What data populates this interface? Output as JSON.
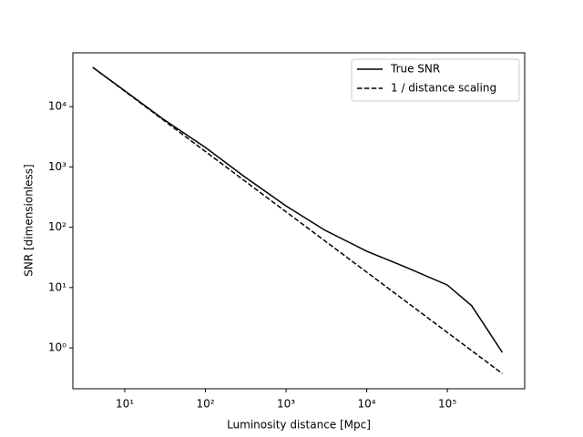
{
  "chart_data": {
    "type": "line",
    "xlabel": "Luminosity distance [Mpc]",
    "ylabel": "SNR [dimensionless]",
    "x": [
      4.0,
      10,
      30,
      100,
      300,
      1000,
      3000,
      10000,
      30000,
      100000,
      200000,
      300000,
      480000
    ],
    "series": [
      {
        "name": "True SNR",
        "color": "#000000",
        "linestyle": "solid",
        "values": [
          44700,
          18300,
          6200,
          2100,
          700,
          225,
          90,
          40,
          22,
          11,
          5,
          2.2,
          0.84
        ]
      },
      {
        "name": "1 / distance scaling",
        "color": "#000000",
        "linestyle": "dashed",
        "values": [
          45000,
          18000,
          6000,
          1800,
          600,
          180,
          60,
          18,
          6,
          1.8,
          0.9,
          0.6,
          0.375
        ]
      }
    ],
    "xscale": "log",
    "yscale": "log",
    "xlim": [
      2.27,
      910000
    ],
    "ylim": [
      0.21,
      78000
    ],
    "xticks": [
      {
        "value": 10,
        "label": "10¹"
      },
      {
        "value": 100,
        "label": "10²"
      },
      {
        "value": 1000,
        "label": "10³"
      },
      {
        "value": 10000,
        "label": "10⁴"
      },
      {
        "value": 100000,
        "label": "10⁵"
      }
    ],
    "yticks": [
      {
        "value": 1,
        "label": "10⁰"
      },
      {
        "value": 10,
        "label": "10¹"
      },
      {
        "value": 100,
        "label": "10²"
      },
      {
        "value": 1000,
        "label": "10³"
      },
      {
        "value": 10000,
        "label": "10⁴"
      }
    ],
    "legend": "upper right"
  }
}
